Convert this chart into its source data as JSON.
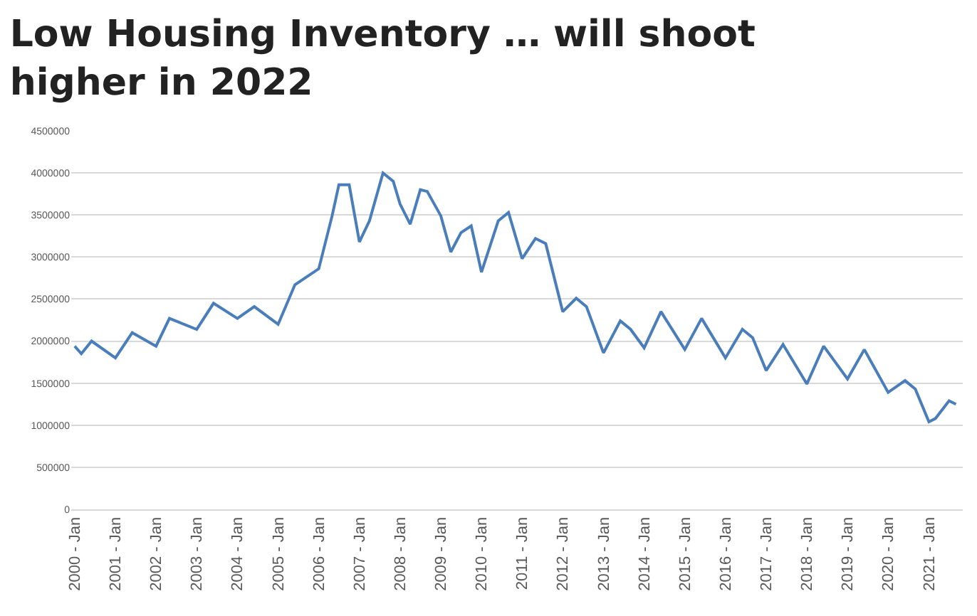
{
  "chart_data": {
    "type": "line",
    "title": "Low Housing Inventory … will shoot higher in 2022",
    "x": [
      "2000-01",
      "2000-03",
      "2000-06",
      "2001-01",
      "2001-06",
      "2002-01",
      "2002-05",
      "2003-01",
      "2003-06",
      "2004-01",
      "2004-06",
      "2005-01",
      "2005-06",
      "2006-01",
      "2006-05",
      "2006-07",
      "2006-10",
      "2007-01",
      "2007-04",
      "2007-08",
      "2007-11",
      "2008-01",
      "2008-04",
      "2008-07",
      "2008-09",
      "2009-01",
      "2009-04",
      "2009-07",
      "2009-10",
      "2010-01",
      "2010-06",
      "2010-09",
      "2011-01",
      "2011-05",
      "2011-08",
      "2012-01",
      "2012-05",
      "2012-08",
      "2013-01",
      "2013-06",
      "2013-09",
      "2014-01",
      "2014-06",
      "2015-01",
      "2015-06",
      "2016-01",
      "2016-06",
      "2016-09",
      "2017-01",
      "2017-06",
      "2018-01",
      "2018-06",
      "2019-01",
      "2019-06",
      "2020-01",
      "2020-06",
      "2020-09",
      "2021-01",
      "2021-03",
      "2021-07",
      "2021-09"
    ],
    "series": [
      {
        "color": "#4a7ebb",
        "values": [
          1940000,
          1850000,
          2000000,
          1800000,
          2100000,
          1940000,
          2270000,
          2140000,
          2450000,
          2270000,
          2410000,
          2200000,
          2670000,
          2860000,
          3490000,
          3860000,
          3860000,
          3180000,
          3430000,
          4000000,
          3900000,
          3630000,
          3390000,
          3800000,
          3780000,
          3490000,
          3060000,
          3290000,
          3370000,
          2820000,
          3430000,
          3530000,
          2980000,
          3220000,
          3160000,
          2350000,
          2510000,
          2410000,
          1860000,
          2240000,
          2140000,
          1920000,
          2350000,
          1900000,
          2270000,
          1800000,
          2140000,
          2040000,
          1650000,
          1960000,
          1490000,
          1940000,
          1550000,
          1900000,
          1390000,
          1530000,
          1430000,
          1040000,
          1080000,
          1290000,
          1250000
        ]
      }
    ],
    "xlim": [
      "1999-12",
      "2021-11"
    ],
    "xticks": [
      {
        "value": "2000-01",
        "label": "2000 - Jan"
      },
      {
        "value": "2001-01",
        "label": "2001 - Jan"
      },
      {
        "value": "2002-01",
        "label": "2002 - Jan"
      },
      {
        "value": "2003-01",
        "label": "2003 - Jan"
      },
      {
        "value": "2004-01",
        "label": "2004 - Jan"
      },
      {
        "value": "2005-01",
        "label": "2005 - Jan"
      },
      {
        "value": "2006-01",
        "label": "2006 - Jan"
      },
      {
        "value": "2007-01",
        "label": "2007 - Jan"
      },
      {
        "value": "2008-01",
        "label": "2008 - Jan"
      },
      {
        "value": "2009-01",
        "label": "2009 - Jan"
      },
      {
        "value": "2010-01",
        "label": "2010 - Jan"
      },
      {
        "value": "2011-01",
        "label": "2011 - Jan"
      },
      {
        "value": "2012-01",
        "label": "2012 - Jan"
      },
      {
        "value": "2013-01",
        "label": "2013 - Jan"
      },
      {
        "value": "2014-01",
        "label": "2014 - Jan"
      },
      {
        "value": "2015-01",
        "label": "2015 - Jan"
      },
      {
        "value": "2016-01",
        "label": "2016 - Jan"
      },
      {
        "value": "2017-01",
        "label": "2017 - Jan"
      },
      {
        "value": "2018-01",
        "label": "2018 - Jan"
      },
      {
        "value": "2019-01",
        "label": "2019 - Jan"
      },
      {
        "value": "2020-01",
        "label": "2020 - Jan"
      },
      {
        "value": "2021-01",
        "label": "2021 - Jan"
      }
    ],
    "ylim": [
      0,
      4500000
    ],
    "yticks": [
      0,
      500000,
      1000000,
      1500000,
      2000000,
      2500000,
      3000000,
      3500000,
      4000000,
      4500000
    ],
    "grid": "y",
    "marker": "none",
    "line_style": "solid"
  }
}
